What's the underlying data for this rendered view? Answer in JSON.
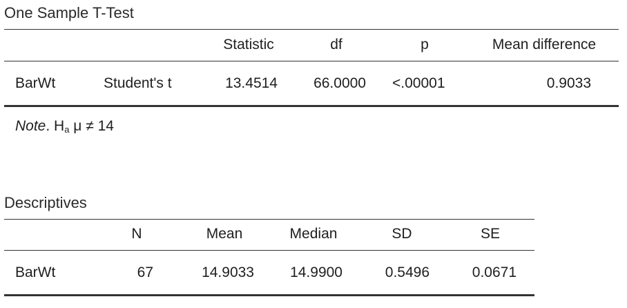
{
  "ttest": {
    "title": "One Sample T-Test",
    "headers": {
      "statistic": "Statistic",
      "df": "df",
      "p": "p",
      "mean_diff": "Mean difference"
    },
    "row": {
      "variable": "BarWt",
      "test": "Student's t",
      "statistic": "13.4514",
      "df": "66.0000",
      "p": "<.00001",
      "mean_diff": "0.9033"
    },
    "note_label": "Note",
    "note_text": ". H",
    "note_sub": "a",
    "note_rest": " μ ≠ 14"
  },
  "descriptives": {
    "title": "Descriptives",
    "headers": {
      "n": "N",
      "mean": "Mean",
      "median": "Median",
      "sd": "SD",
      "se": "SE"
    },
    "row": {
      "variable": "BarWt",
      "n": "67",
      "mean": "14.9033",
      "median": "14.9900",
      "sd": "0.5496",
      "se": "0.0671"
    }
  }
}
